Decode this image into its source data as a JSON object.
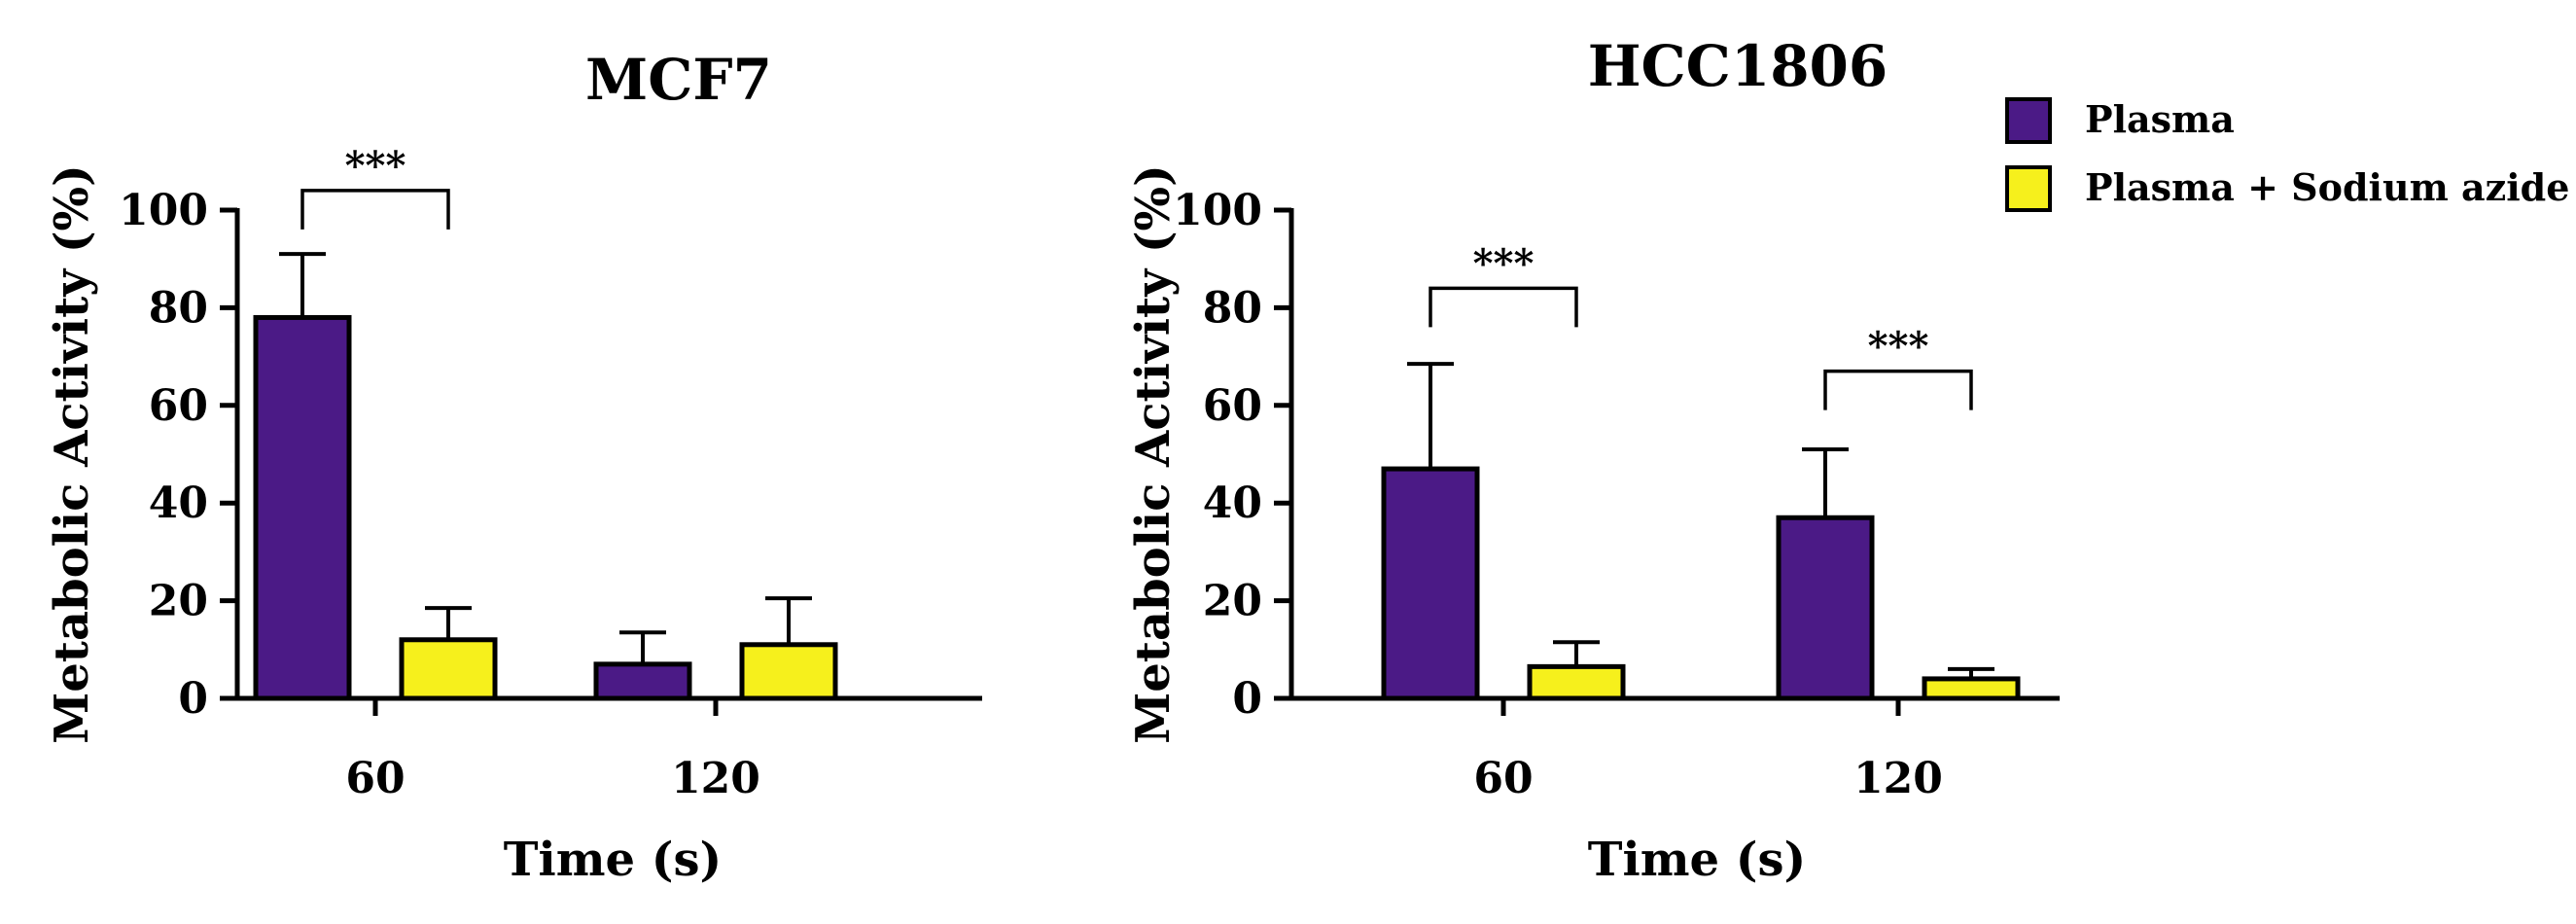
{
  "legend": {
    "position": "top-right",
    "items": [
      {
        "label": "Plasma",
        "color": "#4b1a86"
      },
      {
        "label": "Plasma + Sodium azide",
        "color": "#f6f01c"
      }
    ]
  },
  "chart_data": [
    {
      "type": "bar",
      "title": "MCF7",
      "xlabel": "Time (s)",
      "ylabel": "Metabolic Activity (%)",
      "ylim": [
        0,
        100
      ],
      "yticks": [
        0,
        20,
        40,
        60,
        80,
        100
      ],
      "categories": [
        "60",
        "120"
      ],
      "series": [
        {
          "name": "Plasma",
          "color": "#4b1a86",
          "values": [
            78,
            7
          ],
          "errors": [
            13,
            6.5
          ]
        },
        {
          "name": "Plasma + Sodium azide",
          "color": "#f6f01c",
          "values": [
            12,
            11
          ],
          "errors": [
            6.5,
            9.5
          ]
        }
      ],
      "significance": [
        {
          "category": 0,
          "label": "***",
          "y": 104
        }
      ]
    },
    {
      "type": "bar",
      "title": "HCC1806",
      "xlabel": "Time (s)",
      "ylabel": "Metabolic Activity (%)",
      "ylim": [
        0,
        100
      ],
      "yticks": [
        0,
        20,
        40,
        60,
        80,
        100
      ],
      "categories": [
        "60",
        "120"
      ],
      "series": [
        {
          "name": "Plasma",
          "color": "#4b1a86",
          "values": [
            47,
            37
          ],
          "errors": [
            21.5,
            14
          ]
        },
        {
          "name": "Plasma + Sodium azide",
          "color": "#f6f01c",
          "values": [
            6.5,
            4
          ],
          "errors": [
            5,
            2
          ]
        }
      ],
      "significance": [
        {
          "category": 0,
          "label": "***",
          "y": 84
        },
        {
          "category": 1,
          "label": "***",
          "y": 67
        }
      ]
    }
  ]
}
